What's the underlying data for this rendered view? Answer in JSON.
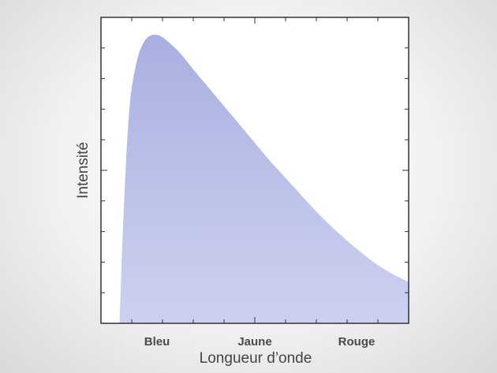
{
  "chart_data": {
    "type": "area",
    "title": "",
    "xlabel": "Longueur d’onde",
    "ylabel": "Intensité",
    "categories": [
      "Bleu",
      "Jaune",
      "Rouge"
    ],
    "x_range": [
      0,
      1
    ],
    "ylim": [
      0,
      1
    ],
    "grid": false,
    "legend": "none",
    "colors": {
      "fill_top": "#a9b0e0",
      "fill_bottom": "#cdd1f0",
      "axis": "#333333",
      "text": "#444444"
    },
    "series": [
      {
        "x": [
          0.06,
          0.07,
          0.08,
          0.09,
          0.1,
          0.12,
          0.14,
          0.16,
          0.18,
          0.2,
          0.23,
          0.26,
          0.3,
          0.35,
          0.4,
          0.45,
          0.5,
          0.55,
          0.6,
          0.65,
          0.7,
          0.75,
          0.8,
          0.85,
          0.9,
          0.95,
          1.0
        ],
        "values": [
          0.0,
          0.27,
          0.5,
          0.67,
          0.77,
          0.87,
          0.92,
          0.94,
          0.943,
          0.935,
          0.91,
          0.88,
          0.83,
          0.77,
          0.71,
          0.65,
          0.59,
          0.53,
          0.475,
          0.42,
          0.365,
          0.315,
          0.27,
          0.228,
          0.19,
          0.16,
          0.135
        ]
      }
    ]
  }
}
